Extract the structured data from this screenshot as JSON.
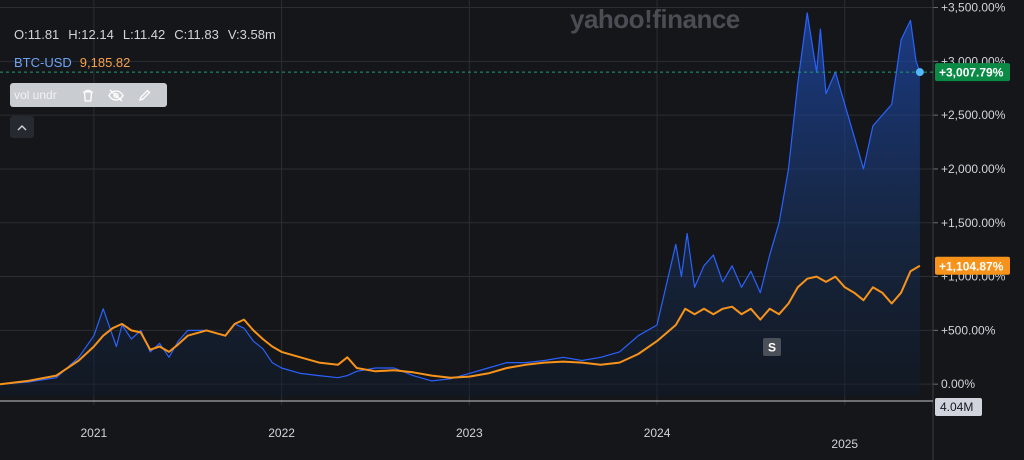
{
  "brand": {
    "logo": "yahoo!finance"
  },
  "ohlc": {
    "open": "O:11.81",
    "high": "H:12.14",
    "low": "L:11.42",
    "close": "C:11.83",
    "volume": "V:3.58m"
  },
  "ticker": {
    "symbol": "BTC-USD",
    "value": "9,185.82"
  },
  "study_toolbar": {
    "label": "vol undr",
    "icons": [
      "trash-icon",
      "eye-off-icon",
      "pencil-icon"
    ]
  },
  "colors": {
    "background": "#141619",
    "grid": "#2a2e35",
    "primary_series": "#2962ff",
    "comparison_series": "#f7931a",
    "positive_badge": "#0b8a45",
    "divider": "#c7c7c7"
  },
  "event_marker": {
    "label": "S"
  },
  "volume_badge": "4.04M",
  "chart_data": {
    "type": "area",
    "x_ticks": [
      "2021",
      "2022",
      "2023",
      "2024",
      "2025"
    ],
    "y_ticks": [
      "0.00%",
      "+500.00%",
      "+1,000.00%",
      "+1,500.00%",
      "+2,000.00%",
      "+2,500.00%",
      "+3,000.00%",
      "+3,500.00%"
    ],
    "ylim": [
      -110,
      3570
    ],
    "xlim": [
      2020.5,
      2025.47
    ],
    "grid": true,
    "series": [
      {
        "color": "#2962ff",
        "last_label": "+3,007.79%",
        "x": [
          2020.5,
          2020.65,
          2020.8,
          2020.92,
          2021.0,
          2021.05,
          2021.1,
          2021.12,
          2021.15,
          2021.2,
          2021.25,
          2021.3,
          2021.35,
          2021.4,
          2021.45,
          2021.5,
          2021.6,
          2021.7,
          2021.75,
          2021.8,
          2021.85,
          2021.9,
          2021.95,
          2022.0,
          2022.1,
          2022.2,
          2022.3,
          2022.35,
          2022.4,
          2022.5,
          2022.6,
          2022.7,
          2022.8,
          2022.9,
          2023.0,
          2023.1,
          2023.2,
          2023.3,
          2023.4,
          2023.5,
          2023.6,
          2023.7,
          2023.8,
          2023.9,
          2024.0,
          2024.1,
          2024.13,
          2024.16,
          2024.2,
          2024.25,
          2024.3,
          2024.35,
          2024.4,
          2024.45,
          2024.5,
          2024.55,
          2024.6,
          2024.65,
          2024.7,
          2024.75,
          2024.8,
          2024.85,
          2024.87,
          2024.9,
          2024.95,
          2025.0,
          2025.05,
          2025.1,
          2025.15,
          2025.2,
          2025.25,
          2025.3,
          2025.35,
          2025.38,
          2025.4
        ],
        "y": [
          0,
          20,
          60,
          250,
          450,
          700,
          450,
          350,
          550,
          420,
          500,
          300,
          380,
          250,
          400,
          500,
          500,
          450,
          560,
          520,
          400,
          330,
          200,
          150,
          100,
          80,
          60,
          80,
          120,
          150,
          150,
          80,
          30,
          50,
          100,
          150,
          200,
          200,
          220,
          250,
          220,
          250,
          300,
          450,
          550,
          1300,
          1000,
          1400,
          900,
          1100,
          1200,
          950,
          1100,
          900,
          1050,
          850,
          1200,
          1500,
          2000,
          2800,
          3450,
          2900,
          3300,
          2700,
          2900,
          2600,
          2300,
          2000,
          2400,
          2500,
          2600,
          3200,
          3380,
          3000,
          2900
        ]
      },
      {
        "color": "#f7931a",
        "last_label": "+1,104.87%",
        "x": [
          2020.5,
          2020.65,
          2020.8,
          2020.92,
          2021.0,
          2021.05,
          2021.1,
          2021.15,
          2021.2,
          2021.25,
          2021.3,
          2021.35,
          2021.4,
          2021.45,
          2021.5,
          2021.6,
          2021.7,
          2021.75,
          2021.8,
          2021.85,
          2021.9,
          2021.95,
          2022.0,
          2022.1,
          2022.2,
          2022.3,
          2022.35,
          2022.4,
          2022.5,
          2022.6,
          2022.7,
          2022.8,
          2022.9,
          2023.0,
          2023.1,
          2023.2,
          2023.3,
          2023.4,
          2023.5,
          2023.6,
          2023.7,
          2023.8,
          2023.9,
          2024.0,
          2024.1,
          2024.15,
          2024.2,
          2024.25,
          2024.3,
          2024.35,
          2024.4,
          2024.45,
          2024.5,
          2024.55,
          2024.6,
          2024.65,
          2024.7,
          2024.75,
          2024.8,
          2024.85,
          2024.9,
          2024.95,
          2025.0,
          2025.05,
          2025.1,
          2025.15,
          2025.2,
          2025.25,
          2025.3,
          2025.35,
          2025.4
        ],
        "y": [
          0,
          30,
          80,
          220,
          350,
          450,
          520,
          560,
          500,
          480,
          320,
          350,
          300,
          370,
          450,
          500,
          450,
          560,
          600,
          500,
          420,
          350,
          300,
          250,
          200,
          180,
          250,
          150,
          120,
          130,
          110,
          80,
          60,
          70,
          100,
          150,
          180,
          200,
          210,
          200,
          180,
          200,
          280,
          400,
          550,
          700,
          650,
          700,
          650,
          700,
          720,
          650,
          700,
          600,
          700,
          650,
          750,
          900,
          980,
          1000,
          950,
          1000,
          900,
          850,
          780,
          900,
          850,
          750,
          850,
          1050,
          1100
        ]
      }
    ]
  }
}
